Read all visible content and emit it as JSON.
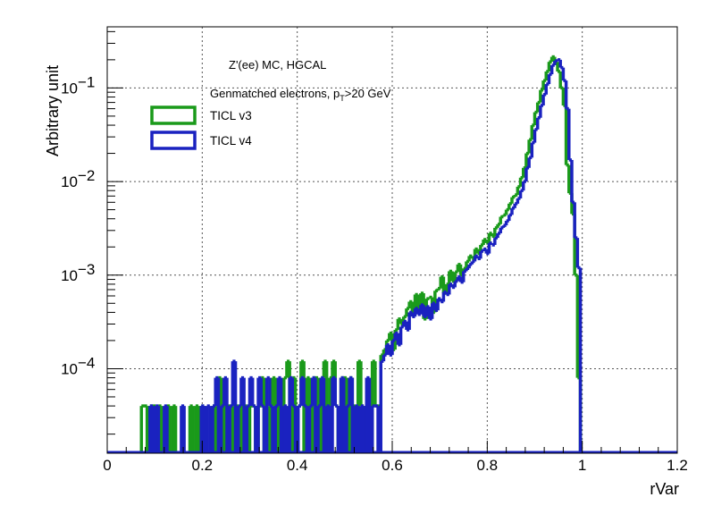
{
  "chart_data": {
    "type": "histogram",
    "xlabel": "rVar",
    "ylabel": "Arbitrary unit",
    "xlim": [
      0,
      1.2
    ],
    "ylim": [
      1.25e-05,
      0.45
    ],
    "yscale": "log",
    "grid": true,
    "bin_width": 0.006,
    "x_ticks": [
      "0",
      "0.2",
      "0.4",
      "0.6",
      "0.8",
      "1",
      "1.2"
    ],
    "x_tick_values": [
      0,
      0.2,
      0.4,
      0.6,
      0.8,
      1.0,
      1.2
    ],
    "y_ticks": [
      {
        "value": 0.1,
        "base": "10",
        "exp": "−1"
      },
      {
        "value": 0.01,
        "base": "10",
        "exp": "−2"
      },
      {
        "value": 0.001,
        "base": "10",
        "exp": "−3"
      },
      {
        "value": 0.0001,
        "base": "10",
        "exp": "−4"
      }
    ],
    "annotations": {
      "line1": "Z'(ee) MC, HGCAL",
      "line2_main": "Genmatched electrons, p",
      "line2_sub": "T",
      "line2_tail": ">20 GeV"
    },
    "legend_position": "top-left",
    "series": [
      {
        "name": "TICL v3",
        "color": "#1a9a1a",
        "points": [
          [
            0.072,
            4e-05
          ],
          [
            0.078,
            4e-05
          ],
          [
            0.09,
            4e-05
          ],
          [
            0.096,
            4e-05
          ],
          [
            0.108,
            4e-05
          ],
          [
            0.126,
            4e-05
          ],
          [
            0.138,
            4e-05
          ],
          [
            0.174,
            4e-05
          ],
          [
            0.186,
            4e-05
          ],
          [
            0.198,
            4e-05
          ],
          [
            0.222,
            4e-05
          ],
          [
            0.234,
            8e-05
          ],
          [
            0.246,
            4e-05
          ],
          [
            0.252,
            4e-05
          ],
          [
            0.258,
            4e-05
          ],
          [
            0.27,
            4e-05
          ],
          [
            0.282,
            4e-05
          ],
          [
            0.288,
            4e-05
          ],
          [
            0.3,
            4e-05
          ],
          [
            0.306,
            4e-05
          ],
          [
            0.318,
            4e-05
          ],
          [
            0.324,
            8e-05
          ],
          [
            0.342,
            4e-05
          ],
          [
            0.348,
            8e-05
          ],
          [
            0.36,
            4e-05
          ],
          [
            0.372,
            8e-05
          ],
          [
            0.378,
            0.00012
          ],
          [
            0.39,
            8e-05
          ],
          [
            0.402,
            4e-05
          ],
          [
            0.408,
            0.00012
          ],
          [
            0.42,
            8e-05
          ],
          [
            0.432,
            8e-05
          ],
          [
            0.438,
            8e-05
          ],
          [
            0.45,
            8e-05
          ],
          [
            0.456,
            0.00012
          ],
          [
            0.468,
            8e-05
          ],
          [
            0.474,
            0.00012
          ],
          [
            0.48,
            4e-05
          ],
          [
            0.492,
            8e-05
          ],
          [
            0.498,
            8e-05
          ],
          [
            0.51,
            8e-05
          ],
          [
            0.516,
            4e-05
          ],
          [
            0.528,
            0.00012
          ],
          [
            0.534,
            4e-05
          ],
          [
            0.546,
            4e-05
          ],
          [
            0.558,
            0.00012
          ],
          [
            0.564,
            4e-05
          ],
          [
            0.57,
            4e-05
          ],
          [
            0.576,
            0.00014
          ],
          [
            0.582,
            0.00016
          ],
          [
            0.588,
            0.0002
          ],
          [
            0.594,
            0.00024
          ],
          [
            0.6,
            0.00016
          ],
          [
            0.606,
            0.00026
          ],
          [
            0.612,
            0.00034
          ],
          [
            0.618,
            0.0003
          ],
          [
            0.624,
            0.00036
          ],
          [
            0.63,
            0.00044
          ],
          [
            0.636,
            0.00052
          ],
          [
            0.642,
            0.00038
          ],
          [
            0.648,
            0.00062
          ],
          [
            0.654,
            0.00042
          ],
          [
            0.66,
            0.00064
          ],
          [
            0.666,
            0.00034
          ],
          [
            0.672,
            0.00056
          ],
          [
            0.678,
            0.00058
          ],
          [
            0.684,
            0.0004
          ],
          [
            0.69,
            0.00068
          ],
          [
            0.696,
            0.00072
          ],
          [
            0.702,
            0.00096
          ],
          [
            0.708,
            0.00064
          ],
          [
            0.714,
            0.0008
          ],
          [
            0.72,
            0.0011
          ],
          [
            0.726,
            0.00086
          ],
          [
            0.732,
            0.00108
          ],
          [
            0.738,
            0.0013
          ],
          [
            0.744,
            0.001
          ],
          [
            0.75,
            0.00118
          ],
          [
            0.756,
            0.0014
          ],
          [
            0.762,
            0.0016
          ],
          [
            0.768,
            0.0015
          ],
          [
            0.774,
            0.0019
          ],
          [
            0.78,
            0.0017
          ],
          [
            0.786,
            0.0021
          ],
          [
            0.792,
            0.0024
          ],
          [
            0.798,
            0.0022
          ],
          [
            0.804,
            0.0028
          ],
          [
            0.81,
            0.0026
          ],
          [
            0.816,
            0.0032
          ],
          [
            0.822,
            0.0035
          ],
          [
            0.828,
            0.0042
          ],
          [
            0.834,
            0.0044
          ],
          [
            0.84,
            0.005
          ],
          [
            0.846,
            0.0058
          ],
          [
            0.852,
            0.0068
          ],
          [
            0.858,
            0.0072
          ],
          [
            0.864,
            0.0088
          ],
          [
            0.87,
            0.011
          ],
          [
            0.876,
            0.014
          ],
          [
            0.882,
            0.02
          ],
          [
            0.888,
            0.028
          ],
          [
            0.894,
            0.04
          ],
          [
            0.9,
            0.055
          ],
          [
            0.906,
            0.07
          ],
          [
            0.912,
            0.095
          ],
          [
            0.918,
            0.12
          ],
          [
            0.924,
            0.15
          ],
          [
            0.93,
            0.19
          ],
          [
            0.936,
            0.215
          ],
          [
            0.942,
            0.19
          ],
          [
            0.948,
            0.15
          ],
          [
            0.954,
            0.1
          ],
          [
            0.96,
            0.065
          ],
          [
            0.966,
            0.015
          ],
          [
            0.972,
            0.0075
          ],
          [
            0.978,
            0.0045
          ],
          [
            0.984,
            0.001
          ],
          [
            0.99,
            8e-05
          ]
        ]
      },
      {
        "name": "TICL v4",
        "color": "#1a22c0",
        "points": [
          [
            0.09,
            4e-05
          ],
          [
            0.102,
            4e-05
          ],
          [
            0.12,
            4e-05
          ],
          [
            0.156,
            4e-05
          ],
          [
            0.198,
            4e-05
          ],
          [
            0.21,
            4e-05
          ],
          [
            0.222,
            4e-05
          ],
          [
            0.228,
            8e-05
          ],
          [
            0.24,
            4e-05
          ],
          [
            0.246,
            8e-05
          ],
          [
            0.258,
            4e-05
          ],
          [
            0.264,
            0.00012
          ],
          [
            0.276,
            4e-05
          ],
          [
            0.282,
            8e-05
          ],
          [
            0.294,
            4e-05
          ],
          [
            0.3,
            8e-05
          ],
          [
            0.306,
            4e-05
          ],
          [
            0.318,
            8e-05
          ],
          [
            0.324,
            4e-05
          ],
          [
            0.336,
            8e-05
          ],
          [
            0.342,
            4e-05
          ],
          [
            0.354,
            4e-05
          ],
          [
            0.36,
            8e-05
          ],
          [
            0.372,
            4e-05
          ],
          [
            0.384,
            8e-05
          ],
          [
            0.39,
            4e-05
          ],
          [
            0.402,
            4e-05
          ],
          [
            0.408,
            8e-05
          ],
          [
            0.414,
            4e-05
          ],
          [
            0.426,
            4e-05
          ],
          [
            0.432,
            8e-05
          ],
          [
            0.444,
            4e-05
          ],
          [
            0.45,
            8e-05
          ],
          [
            0.462,
            4e-05
          ],
          [
            0.474,
            8e-05
          ],
          [
            0.48,
            4e-05
          ],
          [
            0.492,
            8e-05
          ],
          [
            0.504,
            4e-05
          ],
          [
            0.51,
            8e-05
          ],
          [
            0.522,
            4e-05
          ],
          [
            0.534,
            4e-05
          ],
          [
            0.546,
            8e-05
          ],
          [
            0.558,
            4e-05
          ],
          [
            0.564,
            4e-05
          ],
          [
            0.576,
            0.00012
          ],
          [
            0.582,
            0.00014
          ],
          [
            0.588,
            0.00018
          ],
          [
            0.594,
            0.00014
          ],
          [
            0.6,
            0.0002
          ],
          [
            0.606,
            0.00024
          ],
          [
            0.612,
            0.00018
          ],
          [
            0.618,
            0.00028
          ],
          [
            0.624,
            0.00032
          ],
          [
            0.63,
            0.00026
          ],
          [
            0.636,
            0.0004
          ],
          [
            0.642,
            0.00036
          ],
          [
            0.648,
            0.00044
          ],
          [
            0.654,
            0.00038
          ],
          [
            0.66,
            0.00048
          ],
          [
            0.666,
            0.00036
          ],
          [
            0.672,
            0.00046
          ],
          [
            0.678,
            0.00034
          ],
          [
            0.684,
            0.0005
          ],
          [
            0.69,
            0.00042
          ],
          [
            0.696,
            0.00056
          ],
          [
            0.702,
            0.00052
          ],
          [
            0.708,
            0.00066
          ],
          [
            0.714,
            0.00062
          ],
          [
            0.72,
            0.0008
          ],
          [
            0.726,
            0.00074
          ],
          [
            0.732,
            0.00086
          ],
          [
            0.738,
            0.00096
          ],
          [
            0.744,
            0.00084
          ],
          [
            0.75,
            0.0011
          ],
          [
            0.756,
            0.00118
          ],
          [
            0.762,
            0.0013
          ],
          [
            0.768,
            0.0014
          ],
          [
            0.774,
            0.0016
          ],
          [
            0.78,
            0.0015
          ],
          [
            0.786,
            0.0018
          ],
          [
            0.792,
            0.0019
          ],
          [
            0.798,
            0.0017
          ],
          [
            0.804,
            0.0022
          ],
          [
            0.81,
            0.0021
          ],
          [
            0.816,
            0.0025
          ],
          [
            0.822,
            0.0028
          ],
          [
            0.828,
            0.0032
          ],
          [
            0.834,
            0.0034
          ],
          [
            0.84,
            0.0038
          ],
          [
            0.846,
            0.0044
          ],
          [
            0.852,
            0.0052
          ],
          [
            0.858,
            0.0058
          ],
          [
            0.864,
            0.0066
          ],
          [
            0.87,
            0.008
          ],
          [
            0.876,
            0.01
          ],
          [
            0.882,
            0.014
          ],
          [
            0.888,
            0.018
          ],
          [
            0.894,
            0.026
          ],
          [
            0.9,
            0.036
          ],
          [
            0.906,
            0.048
          ],
          [
            0.912,
            0.065
          ],
          [
            0.918,
            0.085
          ],
          [
            0.924,
            0.11
          ],
          [
            0.93,
            0.14
          ],
          [
            0.936,
            0.175
          ],
          [
            0.942,
            0.195
          ],
          [
            0.948,
            0.2
          ],
          [
            0.954,
            0.165
          ],
          [
            0.96,
            0.12
          ],
          [
            0.966,
            0.06
          ],
          [
            0.972,
            0.017
          ],
          [
            0.978,
            0.006
          ],
          [
            0.984,
            0.0025
          ],
          [
            0.99,
            0.0012
          ]
        ]
      }
    ]
  }
}
